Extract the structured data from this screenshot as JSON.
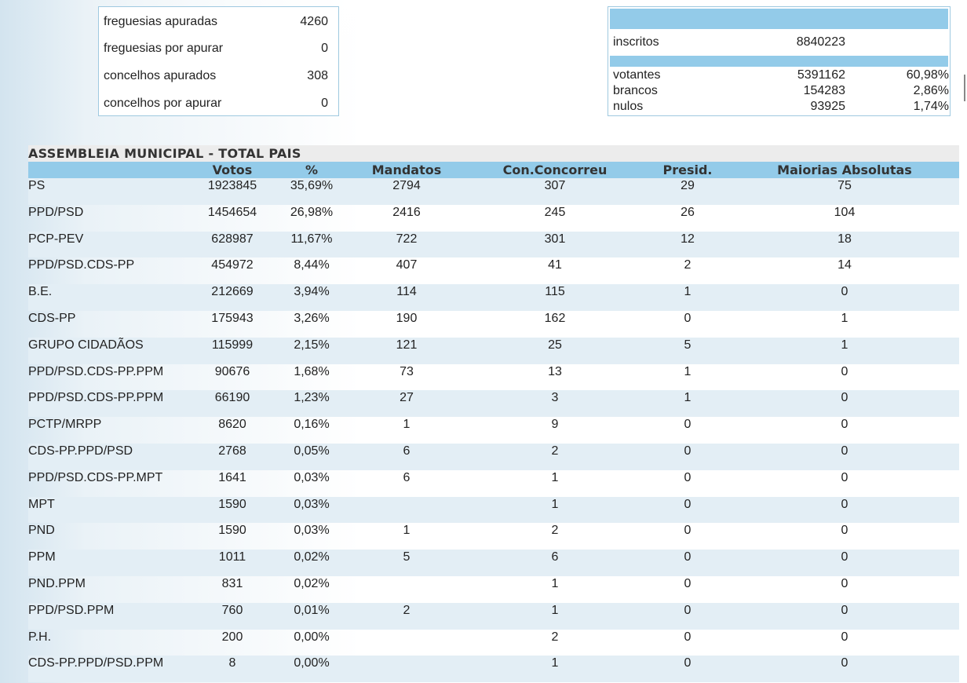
{
  "status": {
    "items": [
      {
        "label": "freguesias apuradas",
        "value": "4260"
      },
      {
        "label": "freguesias por apurar",
        "value": "0"
      },
      {
        "label": "concelhos apurados",
        "value": "308"
      },
      {
        "label": "concelhos por apurar",
        "value": "0"
      }
    ]
  },
  "summary": {
    "inscritos": {
      "label": "inscritos",
      "value": "8840223"
    },
    "votantes": {
      "label": "votantes",
      "value": "5391162",
      "pct": "60,98%"
    },
    "brancos": {
      "label": "brancos",
      "value": "154283",
      "pct": "2,86%"
    },
    "nulos": {
      "label": "nulos",
      "value": "93925",
      "pct": "1,74%"
    }
  },
  "results": {
    "title": "ASSEMBLEIA MUNICIPAL - TOTAL PAIS",
    "columns": [
      "Votos",
      "%",
      "Mandatos",
      "Con.Concorreu",
      "Presid.",
      "Maiorias Absolutas"
    ],
    "rows": [
      {
        "party": "PS",
        "votos": "1923845",
        "pct": "35,69%",
        "mandatos": "2794",
        "concorreu": "307",
        "presid": "29",
        "maiorias": "75"
      },
      {
        "party": "PPD/PSD",
        "votos": "1454654",
        "pct": "26,98%",
        "mandatos": "2416",
        "concorreu": "245",
        "presid": "26",
        "maiorias": "104"
      },
      {
        "party": "PCP-PEV",
        "votos": "628987",
        "pct": "11,67%",
        "mandatos": "722",
        "concorreu": "301",
        "presid": "12",
        "maiorias": "18"
      },
      {
        "party": "PPD/PSD.CDS-PP",
        "votos": "454972",
        "pct": "8,44%",
        "mandatos": "407",
        "concorreu": "41",
        "presid": "2",
        "maiorias": "14"
      },
      {
        "party": "B.E.",
        "votos": "212669",
        "pct": "3,94%",
        "mandatos": "114",
        "concorreu": "115",
        "presid": "1",
        "maiorias": "0"
      },
      {
        "party": "CDS-PP",
        "votos": "175943",
        "pct": "3,26%",
        "mandatos": "190",
        "concorreu": "162",
        "presid": "0",
        "maiorias": "1"
      },
      {
        "party": "GRUPO CIDADÃOS",
        "votos": "115999",
        "pct": "2,15%",
        "mandatos": "121",
        "concorreu": "25",
        "presid": "5",
        "maiorias": "1"
      },
      {
        "party": "PPD/PSD.CDS-PP.PPM",
        "votos": "90676",
        "pct": "1,68%",
        "mandatos": "73",
        "concorreu": "13",
        "presid": "1",
        "maiorias": "0"
      },
      {
        "party": "PPD/PSD.CDS-PP.PPM",
        "votos": "66190",
        "pct": "1,23%",
        "mandatos": "27",
        "concorreu": "3",
        "presid": "1",
        "maiorias": "0"
      },
      {
        "party": "PCTP/MRPP",
        "votos": "8620",
        "pct": "0,16%",
        "mandatos": "1",
        "concorreu": "9",
        "presid": "0",
        "maiorias": "0"
      },
      {
        "party": "CDS-PP.PPD/PSD",
        "votos": "2768",
        "pct": "0,05%",
        "mandatos": "6",
        "concorreu": "2",
        "presid": "0",
        "maiorias": "0"
      },
      {
        "party": "PPD/PSD.CDS-PP.MPT",
        "votos": "1641",
        "pct": "0,03%",
        "mandatos": "6",
        "concorreu": "1",
        "presid": "0",
        "maiorias": "0"
      },
      {
        "party": "MPT",
        "votos": "1590",
        "pct": "0,03%",
        "mandatos": "",
        "concorreu": "1",
        "presid": "0",
        "maiorias": "0"
      },
      {
        "party": "PND",
        "votos": "1590",
        "pct": "0,03%",
        "mandatos": "1",
        "concorreu": "2",
        "presid": "0",
        "maiorias": "0"
      },
      {
        "party": "PPM",
        "votos": "1011",
        "pct": "0,02%",
        "mandatos": "5",
        "concorreu": "6",
        "presid": "0",
        "maiorias": "0"
      },
      {
        "party": "PND.PPM",
        "votos": "831",
        "pct": "0,02%",
        "mandatos": "",
        "concorreu": "1",
        "presid": "0",
        "maiorias": "0"
      },
      {
        "party": "PPD/PSD.PPM",
        "votos": "760",
        "pct": "0,01%",
        "mandatos": "2",
        "concorreu": "1",
        "presid": "0",
        "maiorias": "0"
      },
      {
        "party": "P.H.",
        "votos": "200",
        "pct": "0,00%",
        "mandatos": "",
        "concorreu": "2",
        "presid": "0",
        "maiorias": "0"
      },
      {
        "party": "CDS-PP.PPD/PSD.PPM",
        "votos": "8",
        "pct": "0,00%",
        "mandatos": "",
        "concorreu": "1",
        "presid": "0",
        "maiorias": "0"
      }
    ]
  }
}
